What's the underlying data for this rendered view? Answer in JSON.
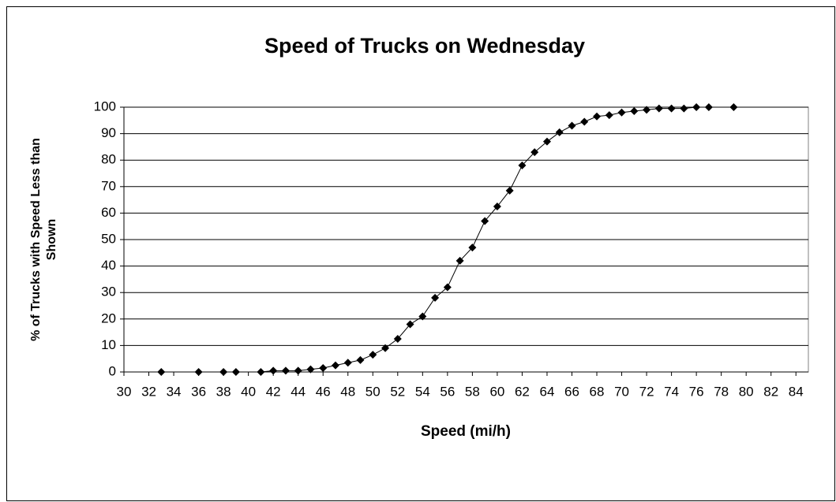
{
  "chart_data": {
    "type": "line",
    "title": "Speed of Trucks on Wednesday",
    "xlabel": "Speed (mi/h)",
    "ylabel": [
      "% of Trucks with Speed Less than",
      "Shown"
    ],
    "x": [
      33,
      36,
      38,
      39,
      41,
      42,
      43,
      44,
      45,
      46,
      47,
      48,
      49,
      50,
      51,
      52,
      53,
      54,
      55,
      56,
      57,
      58,
      59,
      60,
      61,
      62,
      63,
      64,
      65,
      66,
      67,
      68,
      69,
      70,
      71,
      72,
      73,
      74,
      75,
      76,
      77,
      79
    ],
    "values": [
      0,
      0,
      0,
      0,
      0,
      0.5,
      0.5,
      0.5,
      1,
      1.5,
      2.5,
      3.5,
      4.5,
      6.5,
      9,
      12.5,
      18,
      21,
      28,
      32,
      42,
      47,
      57,
      62.5,
      68.5,
      78,
      83,
      87,
      90.5,
      93,
      94.5,
      96.5,
      97,
      98,
      98.5,
      99,
      99.5,
      99.5,
      99.5,
      100,
      100,
      100
    ],
    "color": "#000000",
    "xlim": [
      30,
      85
    ],
    "xticks": [
      30,
      32,
      34,
      36,
      38,
      40,
      42,
      44,
      46,
      48,
      50,
      52,
      54,
      56,
      58,
      60,
      62,
      64,
      66,
      68,
      70,
      72,
      74,
      76,
      78,
      80,
      82,
      84
    ],
    "ylim": [
      0,
      100
    ],
    "yticks": [
      0,
      10,
      20,
      30,
      40,
      50,
      60,
      70,
      80,
      90,
      100
    ],
    "grid": true
  }
}
